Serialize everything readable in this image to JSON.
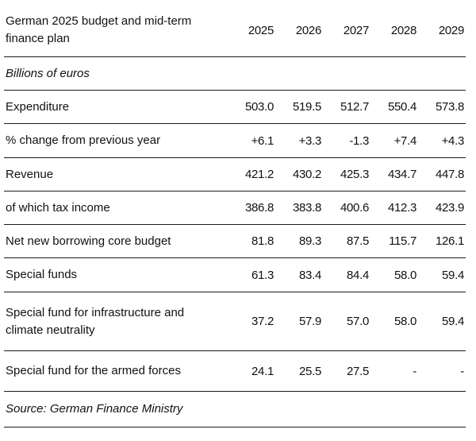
{
  "table": {
    "title": "German 2025 budget and mid-term finance plan",
    "columns": [
      "2025",
      "2026",
      "2027",
      "2028",
      "2029"
    ],
    "unit_note": "Billions of euros",
    "rows": [
      {
        "label": "Expenditure",
        "values": [
          "503.0",
          "519.5",
          "512.7",
          "550.4",
          "573.8"
        ]
      },
      {
        "label": "% change from previous year",
        "values": [
          "+6.1",
          "+3.3",
          "-1.3",
          "+7.4",
          "+4.3"
        ]
      },
      {
        "label": "Revenue",
        "values": [
          "421.2",
          "430.2",
          "425.3",
          "434.7",
          "447.8"
        ]
      },
      {
        "label": "of which tax income",
        "values": [
          "386.8",
          "383.8",
          "400.6",
          "412.3",
          "423.9"
        ]
      },
      {
        "label": "Net new borrowing core budget",
        "values": [
          "81.8",
          "89.3",
          "87.5",
          "115.7",
          "126.1"
        ]
      },
      {
        "label": "Special funds",
        "values": [
          "61.3",
          "83.4",
          "84.4",
          "58.0",
          "59.4"
        ]
      },
      {
        "label": "Special fund for infrastructure and climate neutrality",
        "values": [
          "37.2",
          "57.9",
          "57.0",
          "58.0",
          "59.4"
        ]
      },
      {
        "label": "Special fund for the armed forces",
        "values": [
          "24.1",
          "25.5",
          "27.5",
          "-",
          "-"
        ]
      }
    ],
    "source": "Source: German Finance Ministry"
  },
  "chart_data": {
    "type": "table",
    "title": "German 2025 budget and mid-term finance plan",
    "unit": "Billions of euros",
    "columns": [
      "2025",
      "2026",
      "2027",
      "2028",
      "2029"
    ],
    "rows": [
      {
        "name": "Expenditure",
        "values": [
          503.0,
          519.5,
          512.7,
          550.4,
          573.8
        ]
      },
      {
        "name": "% change from previous year",
        "values": [
          6.1,
          3.3,
          -1.3,
          7.4,
          4.3
        ]
      },
      {
        "name": "Revenue",
        "values": [
          421.2,
          430.2,
          425.3,
          434.7,
          447.8
        ]
      },
      {
        "name": "of which tax income",
        "values": [
          386.8,
          383.8,
          400.6,
          412.3,
          423.9
        ]
      },
      {
        "name": "Net new borrowing core budget",
        "values": [
          81.8,
          89.3,
          87.5,
          115.7,
          126.1
        ]
      },
      {
        "name": "Special funds",
        "values": [
          61.3,
          83.4,
          84.4,
          58.0,
          59.4
        ]
      },
      {
        "name": "Special fund for infrastructure and climate neutrality",
        "values": [
          37.2,
          57.9,
          57.0,
          58.0,
          59.4
        ]
      },
      {
        "name": "Special fund for the armed forces",
        "values": [
          24.1,
          25.5,
          27.5,
          null,
          null
        ]
      }
    ],
    "source": "Source: German Finance Ministry"
  }
}
